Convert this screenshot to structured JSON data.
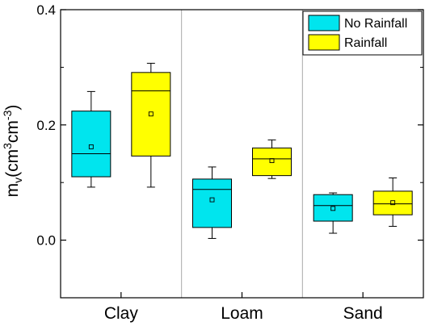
{
  "chart_data": {
    "type": "box",
    "ylabel": {
      "base": "m",
      "sub": "v",
      "unit_a": "(cm",
      "sup_a": "3",
      "unit_b": "cm",
      "sup_b": "-3",
      "close": ")"
    },
    "ylim": [
      -0.1,
      0.4
    ],
    "yticks": [
      0.0,
      0.2,
      0.4
    ],
    "ytick_labels": [
      "0.0",
      "0.2",
      "0.4"
    ],
    "categories": [
      "Clay",
      "Loam",
      "Sand"
    ],
    "grid": false,
    "category_separators": true,
    "legend_position": "top-right",
    "series": [
      {
        "name": "No Rainfall",
        "color": "#00e5ee",
        "boxes": [
          {
            "whisker_low": 0.092,
            "q1": 0.11,
            "median": 0.15,
            "q3": 0.224,
            "whisker_high": 0.258,
            "mean": 0.162
          },
          {
            "whisker_low": 0.003,
            "q1": 0.022,
            "median": 0.088,
            "q3": 0.106,
            "whisker_high": 0.127,
            "mean": 0.07
          },
          {
            "whisker_low": 0.012,
            "q1": 0.033,
            "median": 0.06,
            "q3": 0.079,
            "whisker_high": 0.082,
            "mean": 0.055
          }
        ]
      },
      {
        "name": "Rainfall",
        "color": "#ffff00",
        "boxes": [
          {
            "whisker_low": 0.092,
            "q1": 0.146,
            "median": 0.259,
            "q3": 0.291,
            "whisker_high": 0.307,
            "mean": 0.219
          },
          {
            "whisker_low": 0.107,
            "q1": 0.112,
            "median": 0.141,
            "q3": 0.16,
            "whisker_high": 0.174,
            "mean": 0.138
          },
          {
            "whisker_low": 0.024,
            "q1": 0.044,
            "median": 0.063,
            "q3": 0.085,
            "whisker_high": 0.108,
            "mean": 0.065
          }
        ]
      }
    ]
  }
}
